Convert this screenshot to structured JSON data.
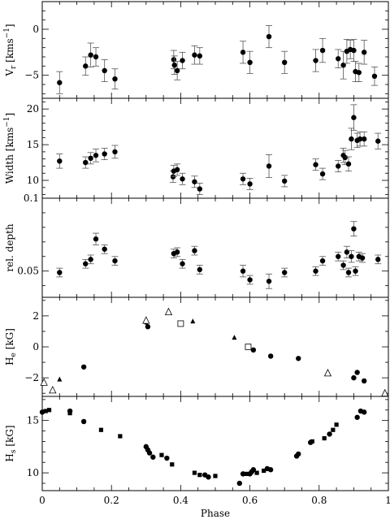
{
  "chart_data": [
    {
      "type": "scatter",
      "ylabel": "V_r [kms^-1]",
      "ylabel_main": "V",
      "ylabel_sub": "r",
      "ylabel_tail": " [kms",
      "ylabel_sup": "−1",
      "ylabel_close": "]",
      "ylim": [
        -7.5,
        3
      ],
      "yticks": [
        0,
        -5
      ],
      "ytick_labels": [
        "0",
        "−5"
      ],
      "yminor": [
        -7,
        -6,
        -4,
        -3,
        -2,
        -1,
        1,
        2
      ],
      "series": [
        {
          "marker": "filled-circle",
          "points": [
            [
              0.05,
              -5.8,
              1.2
            ],
            [
              0.125,
              -4.0,
              1.0
            ],
            [
              0.14,
              -2.8,
              1.3
            ],
            [
              0.155,
              -3.0,
              1.0
            ],
            [
              0.18,
              -4.5,
              1.2
            ],
            [
              0.21,
              -5.4,
              1.1
            ],
            [
              0.38,
              -3.3,
              1.0
            ],
            [
              0.382,
              -3.9,
              1.0
            ],
            [
              0.39,
              -4.5,
              1.0
            ],
            [
              0.405,
              -3.4,
              0.9
            ],
            [
              0.44,
              -2.8,
              1.0
            ],
            [
              0.455,
              -2.9,
              0.9
            ],
            [
              0.58,
              -2.5,
              1.2
            ],
            [
              0.6,
              -3.6,
              1.2
            ],
            [
              0.655,
              -0.8,
              1.2
            ],
            [
              0.7,
              -3.6,
              1.2
            ],
            [
              0.79,
              -3.4,
              1.2
            ],
            [
              0.81,
              -2.3,
              1.3
            ],
            [
              0.855,
              -3.2,
              1.0
            ],
            [
              0.87,
              -3.9,
              1.5
            ],
            [
              0.88,
              -2.4,
              1.3
            ],
            [
              0.89,
              -2.2,
              1.0
            ],
            [
              0.9,
              -2.3,
              1.2
            ],
            [
              0.905,
              -4.6,
              1.1
            ],
            [
              0.915,
              -4.7,
              1.0
            ],
            [
              0.93,
              -2.5,
              1.3
            ],
            [
              0.96,
              -5.1,
              1.0
            ]
          ]
        }
      ]
    },
    {
      "type": "scatter",
      "ylabel": "Width [kms^-1]",
      "ylabel_main": "Width",
      "ylabel_sub": "",
      "ylabel_tail": " [kms",
      "ylabel_sup": "−1",
      "ylabel_close": "]",
      "ylim": [
        7.5,
        21.5
      ],
      "yticks": [
        10,
        15,
        20
      ],
      "ytick_labels": [
        "10",
        "15",
        "20"
      ],
      "yminor": [
        8,
        9,
        11,
        12,
        13,
        14,
        16,
        17,
        18,
        19,
        21
      ],
      "series": [
        {
          "marker": "filled-circle",
          "points": [
            [
              0.05,
              12.7,
              1.0
            ],
            [
              0.125,
              12.5,
              0.8
            ],
            [
              0.14,
              13.1,
              0.8
            ],
            [
              0.155,
              13.5,
              0.9
            ],
            [
              0.18,
              13.7,
              0.8
            ],
            [
              0.21,
              14.0,
              0.9
            ],
            [
              0.378,
              10.5,
              0.8
            ],
            [
              0.38,
              11.3,
              0.8
            ],
            [
              0.39,
              11.5,
              0.8
            ],
            [
              0.405,
              10.2,
              0.8
            ],
            [
              0.44,
              9.8,
              0.8
            ],
            [
              0.455,
              8.8,
              0.8
            ],
            [
              0.58,
              10.2,
              0.8
            ],
            [
              0.6,
              9.5,
              0.8
            ],
            [
              0.655,
              12.0,
              1.6
            ],
            [
              0.7,
              9.9,
              0.8
            ],
            [
              0.79,
              12.2,
              0.8
            ],
            [
              0.81,
              10.9,
              0.8
            ],
            [
              0.855,
              12.0,
              0.8
            ],
            [
              0.87,
              13.5,
              1.0
            ],
            [
              0.875,
              13.2,
              1.0
            ],
            [
              0.885,
              12.3,
              1.0
            ],
            [
              0.893,
              15.8,
              1.5
            ],
            [
              0.9,
              18.8,
              1.8
            ],
            [
              0.91,
              15.6,
              1.0
            ],
            [
              0.918,
              15.8,
              1.0
            ],
            [
              0.93,
              15.8,
              1.0
            ],
            [
              0.97,
              15.5,
              1.1
            ]
          ]
        }
      ]
    },
    {
      "type": "scatter",
      "ylabel": "rel. depth",
      "ylabel_main": "rel. depth",
      "ylabel_sub": "",
      "ylabel_tail": "",
      "ylabel_sup": "",
      "ylabel_close": "",
      "ylim": [
        0.032,
        0.1
      ],
      "yticks": [
        0.05,
        0.1
      ],
      "ytick_labels": [
        "0.05",
        "0.1"
      ],
      "yminor": [
        0.04,
        0.06,
        0.07,
        0.08,
        0.09
      ],
      "series": [
        {
          "marker": "filled-circle",
          "points": [
            [
              0.05,
              0.049,
              0.003
            ],
            [
              0.125,
              0.055,
              0.003
            ],
            [
              0.14,
              0.058,
              0.003
            ],
            [
              0.155,
              0.072,
              0.004
            ],
            [
              0.18,
              0.065,
              0.003
            ],
            [
              0.21,
              0.057,
              0.003
            ],
            [
              0.38,
              0.062,
              0.003
            ],
            [
              0.39,
              0.063,
              0.003
            ],
            [
              0.405,
              0.055,
              0.003
            ],
            [
              0.44,
              0.064,
              0.003
            ],
            [
              0.455,
              0.051,
              0.003
            ],
            [
              0.58,
              0.05,
              0.004
            ],
            [
              0.6,
              0.044,
              0.003
            ],
            [
              0.655,
              0.043,
              0.005
            ],
            [
              0.7,
              0.049,
              0.003
            ],
            [
              0.79,
              0.05,
              0.003
            ],
            [
              0.81,
              0.057,
              0.003
            ],
            [
              0.855,
              0.06,
              0.003
            ],
            [
              0.87,
              0.054,
              0.003
            ],
            [
              0.88,
              0.063,
              0.004
            ],
            [
              0.885,
              0.049,
              0.003
            ],
            [
              0.893,
              0.06,
              0.004
            ],
            [
              0.9,
              0.079,
              0.005
            ],
            [
              0.905,
              0.05,
              0.003
            ],
            [
              0.915,
              0.06,
              0.003
            ],
            [
              0.925,
              0.059,
              0.003
            ],
            [
              0.97,
              0.058,
              0.003
            ]
          ]
        }
      ]
    },
    {
      "type": "scatter",
      "ylabel": "H_e [kG]",
      "ylabel_main": "H",
      "ylabel_sub": "e",
      "ylabel_tail": " [kG]",
      "ylabel_sup": "",
      "ylabel_close": "",
      "ylim": [
        -3.2,
        3.2
      ],
      "yticks": [
        -2,
        0,
        2
      ],
      "ytick_labels": [
        "−2",
        "0",
        "2"
      ],
      "yminor": [
        -3,
        -1,
        1,
        3
      ],
      "series": [
        {
          "marker": "filled-circle",
          "points": [
            [
              0.12,
              -1.3
            ],
            [
              0.3,
              1.6
            ],
            [
              0.305,
              1.3
            ],
            [
              0.61,
              -0.2
            ],
            [
              0.66,
              -0.6
            ],
            [
              0.74,
              -0.75
            ],
            [
              0.9,
              -2.0
            ],
            [
              0.91,
              -1.65
            ],
            [
              0.93,
              -2.2
            ]
          ]
        },
        {
          "marker": "open-triangle",
          "points": [
            [
              0.005,
              -2.3
            ],
            [
              0.03,
              -2.8
            ],
            [
              0.3,
              1.7
            ],
            [
              0.365,
              2.25
            ],
            [
              0.825,
              -1.7
            ],
            [
              0.99,
              -3.0
            ]
          ]
        },
        {
          "marker": "filled-triangle",
          "points": [
            [
              0.05,
              -2.1
            ],
            [
              0.435,
              1.65
            ],
            [
              0.555,
              0.6
            ]
          ]
        },
        {
          "marker": "open-square",
          "points": [
            [
              0.4,
              1.5
            ],
            [
              0.595,
              0.0
            ]
          ]
        }
      ]
    },
    {
      "type": "scatter",
      "ylabel": "H_s [kG]",
      "ylabel_main": "H",
      "ylabel_sub": "s",
      "ylabel_tail": " [kG]",
      "ylabel_sup": "",
      "ylabel_close": "",
      "xlabel": "Phase",
      "xlim": [
        0,
        1
      ],
      "xticks": [
        0,
        0.2,
        0.4,
        0.6,
        0.8,
        1
      ],
      "xtick_labels": [
        "0",
        "0.2",
        "0.4",
        "0.6",
        "0.8",
        "1"
      ],
      "ylim": [
        8.3,
        17.3
      ],
      "yticks": [
        10,
        15
      ],
      "ytick_labels": [
        "10",
        "15"
      ],
      "yminor": [
        9,
        11,
        12,
        13,
        14,
        16,
        17
      ],
      "series": [
        {
          "marker": "filled-circle",
          "points": [
            [
              0.0,
              15.8
            ],
            [
              0.08,
              15.9
            ],
            [
              0.12,
              14.9
            ],
            [
              0.3,
              12.5
            ],
            [
              0.305,
              12.2
            ],
            [
              0.31,
              11.9
            ],
            [
              0.32,
              11.5
            ],
            [
              0.36,
              11.4
            ],
            [
              0.47,
              9.8
            ],
            [
              0.48,
              9.6
            ],
            [
              0.57,
              9.0
            ],
            [
              0.58,
              9.9
            ],
            [
              0.6,
              9.9
            ],
            [
              0.605,
              10.1
            ],
            [
              0.61,
              10.3
            ],
            [
              0.65,
              10.4
            ],
            [
              0.66,
              10.3
            ],
            [
              0.735,
              11.6
            ],
            [
              0.74,
              11.8
            ],
            [
              0.775,
              12.9
            ],
            [
              0.83,
              13.7
            ],
            [
              0.91,
              15.3
            ],
            [
              0.92,
              15.9
            ],
            [
              0.93,
              15.8
            ]
          ]
        },
        {
          "marker": "filled-square",
          "points": [
            [
              0.01,
              15.9
            ],
            [
              0.02,
              16.0
            ],
            [
              0.08,
              15.7
            ],
            [
              0.17,
              14.1
            ],
            [
              0.225,
              13.5
            ],
            [
              0.345,
              11.7
            ],
            [
              0.375,
              10.8
            ],
            [
              0.44,
              10.0
            ],
            [
              0.455,
              9.8
            ],
            [
              0.5,
              9.7
            ],
            [
              0.59,
              9.9
            ],
            [
              0.62,
              10.0
            ],
            [
              0.64,
              10.2
            ],
            [
              0.78,
              13.0
            ],
            [
              0.815,
              13.3
            ],
            [
              0.84,
              14.1
            ],
            [
              0.85,
              14.6
            ]
          ]
        }
      ]
    }
  ]
}
